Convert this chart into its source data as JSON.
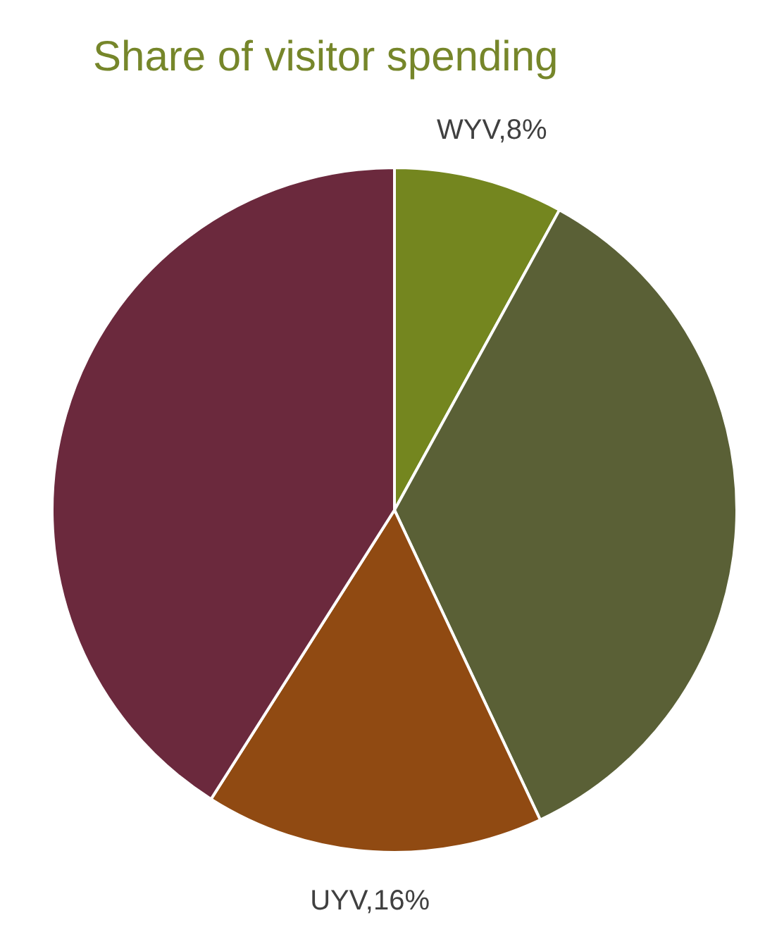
{
  "chart_data": {
    "type": "pie",
    "title": "Share of visitor spending",
    "categories": [
      "WYV",
      null,
      "UYV",
      null
    ],
    "values": [
      8,
      35,
      16,
      41
    ],
    "value_labels": [
      "8%",
      null,
      "16%",
      null
    ],
    "colors": [
      "#74861f",
      "#5a6036",
      "#904a12",
      "#6b293d"
    ]
  }
}
